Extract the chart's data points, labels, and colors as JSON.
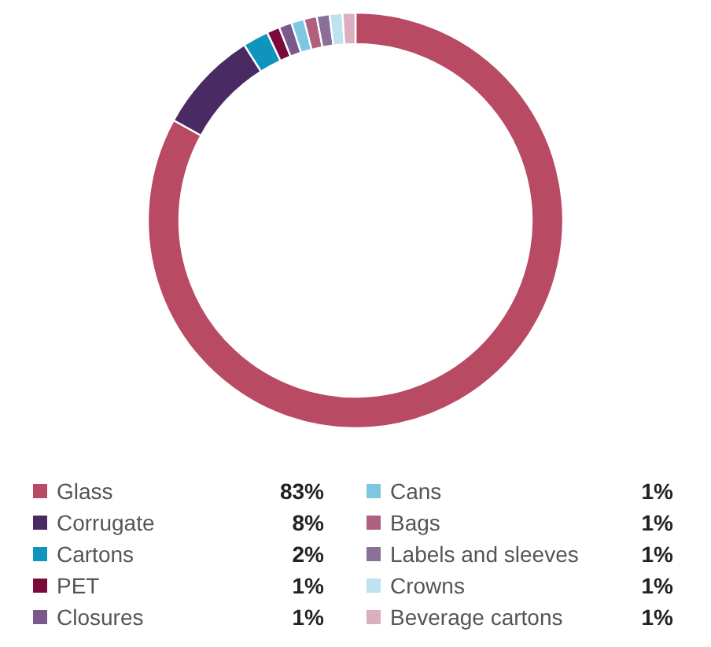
{
  "chart_data": {
    "type": "donut",
    "categories": [
      "Glass",
      "Corrugate",
      "Cartons",
      "PET",
      "Closures",
      "Cans",
      "Bags",
      "Labels and sleeves",
      "Crowns",
      "Beverage cartons"
    ],
    "values": [
      83,
      8,
      2,
      1,
      1,
      1,
      1,
      1,
      1,
      1
    ],
    "value_labels": [
      "83%",
      "8%",
      "2%",
      "1%",
      "1%",
      "1%",
      "1%",
      "1%",
      "1%",
      "1%"
    ],
    "colors": [
      "#b94a64",
      "#4a2a63",
      "#0f95bd",
      "#7a0a3c",
      "#7a5a8c",
      "#7dc8e0",
      "#b0607f",
      "#8a7099",
      "#bde2f0",
      "#dcafc0"
    ],
    "legend": "bottom"
  }
}
